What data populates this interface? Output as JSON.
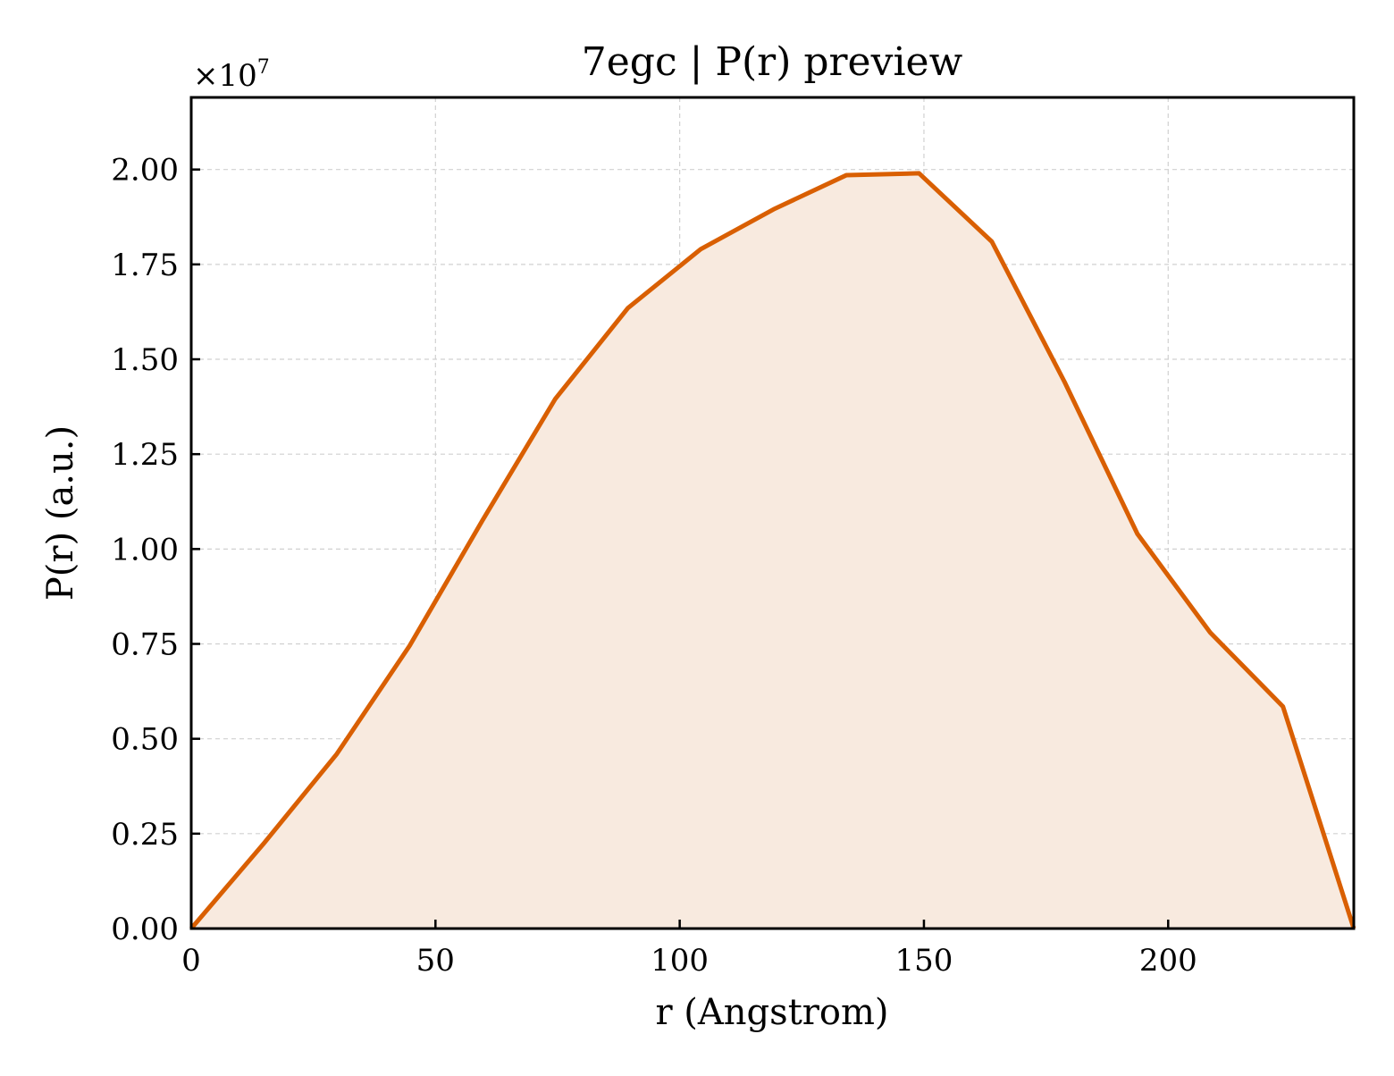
{
  "chart_data": {
    "type": "area",
    "title": "7egc | P(r) preview",
    "xlabel": "r (Angstrom)",
    "ylabel": "P(r) (a.u.)",
    "y_offset_label": "×10",
    "y_offset_exponent": "7",
    "xlim": [
      0,
      238
    ],
    "ylim": [
      0,
      2.19
    ],
    "x_ticks": [
      0,
      50,
      100,
      150,
      200
    ],
    "x_tick_labels": [
      "0",
      "50",
      "100",
      "150",
      "200"
    ],
    "y_ticks": [
      0,
      0.25,
      0.5,
      0.75,
      1.0,
      1.25,
      1.5,
      1.75,
      2.0
    ],
    "y_tick_labels": [
      "0.00",
      "0.25",
      "0.50",
      "0.75",
      "1.00",
      "1.25",
      "1.50",
      "1.75",
      "2.00"
    ],
    "grid": true,
    "line_color": "#d95f02",
    "fill_color": "#f8eadf",
    "series": [
      {
        "x": [
          0,
          14.9,
          29.8,
          44.7,
          59.6,
          74.5,
          89.4,
          104.3,
          119.2,
          134.1,
          149.0,
          163.9,
          178.8,
          193.7,
          208.6,
          223.5,
          238
        ],
        "y": [
          0,
          0.225,
          0.46,
          0.745,
          1.075,
          1.395,
          1.635,
          1.79,
          1.895,
          1.985,
          1.99,
          1.81,
          1.44,
          1.04,
          0.78,
          0.585,
          0
        ]
      }
    ]
  }
}
